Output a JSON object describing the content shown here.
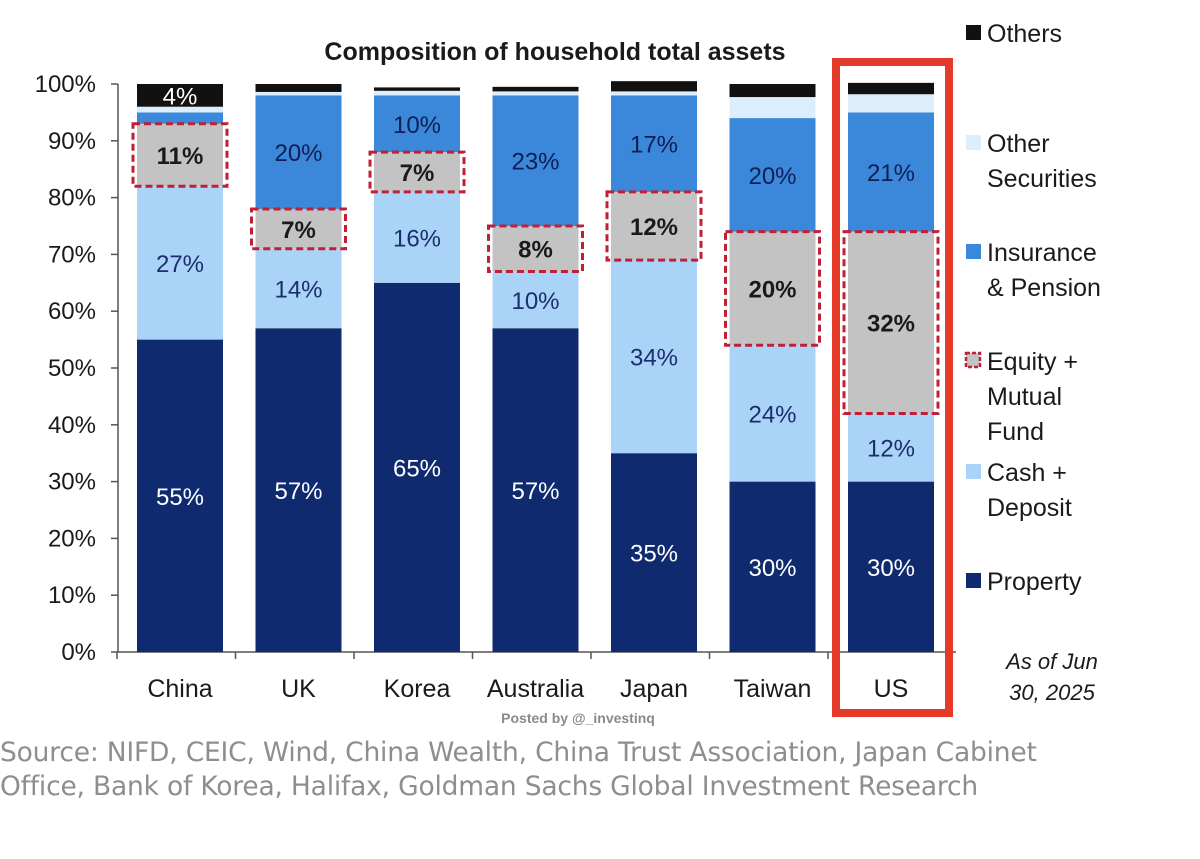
{
  "chart_data": {
    "type": "stacked-bar",
    "title": "Composition  of household total assets",
    "ylim": [
      0,
      100
    ],
    "yticks": [
      "0%",
      "10%",
      "20%",
      "30%",
      "40%",
      "50%",
      "60%",
      "70%",
      "80%",
      "90%",
      "100%"
    ],
    "categories": [
      "China",
      "UK",
      "Korea",
      "Australia",
      "Japan",
      "Taiwan",
      "US"
    ],
    "series": [
      {
        "name": "Property",
        "key": "property",
        "color": "#0f2a6e",
        "labelColor": "#ffffff",
        "values": [
          55,
          57,
          65,
          57,
          35,
          30,
          30
        ],
        "labels": [
          "55%",
          "57%",
          "65%",
          "57%",
          "35%",
          "30%",
          "30%"
        ]
      },
      {
        "name": "Cash + Deposit",
        "key": "cash",
        "color": "#a9d3f7",
        "labelColor": "#1b2f6e",
        "values": [
          27,
          14,
          16,
          10,
          34,
          24,
          12
        ],
        "labels": [
          "27%",
          "14%",
          "16%",
          "10%",
          "34%",
          "24%",
          "12%"
        ]
      },
      {
        "name": "Equity + Mutual Fund",
        "key": "equity",
        "color": "#c3c3c3",
        "labelColor": "#1a1a1a",
        "dashed": true,
        "values": [
          11,
          7,
          7,
          8,
          12,
          20,
          32
        ],
        "labels": [
          "11%",
          "7%",
          "7%",
          "8%",
          "12%",
          "20%",
          "32%"
        ]
      },
      {
        "name": "Insurance & Pension",
        "key": "insurance",
        "color": "#3b87d9",
        "labelColor": "#0f1f55",
        "values": [
          2,
          20,
          10,
          23,
          17,
          20,
          21
        ],
        "labels": [
          "",
          "20%",
          "10%",
          "23%",
          "17%",
          "20%",
          "21%"
        ]
      },
      {
        "name": "Other Securities",
        "key": "othersec",
        "color": "#dceefc",
        "labelColor": "#1a1a1a",
        "values": [
          1,
          0.6,
          0.8,
          0.7,
          0.7,
          3.7,
          3.2
        ],
        "labels": [
          "",
          "",
          "",
          "",
          "",
          "",
          ""
        ]
      },
      {
        "name": "Others",
        "key": "others",
        "color": "#111111",
        "labelColor": "#ffffff",
        "values": [
          4,
          1.4,
          0.6,
          0.8,
          1.8,
          2.3,
          2.0
        ],
        "labels": [
          "4%",
          "",
          "",
          "",
          "",
          "",
          ""
        ]
      }
    ],
    "highlight": "US",
    "legend": [
      {
        "key": "others",
        "lines": [
          "Others"
        ]
      },
      {
        "key": "othersec",
        "lines": [
          "Other",
          "Securities"
        ]
      },
      {
        "key": "insurance",
        "lines": [
          "Insurance",
          "& Pension"
        ]
      },
      {
        "key": "equity",
        "lines": [
          "Equity +",
          "Mutual",
          "Fund"
        ]
      },
      {
        "key": "cash",
        "lines": [
          "Cash +",
          "Deposit"
        ]
      },
      {
        "key": "property",
        "lines": [
          "Property"
        ]
      }
    ],
    "note": [
      "As of Jun",
      "30, 2025"
    ],
    "legend_position": "right"
  },
  "watermark": "Posted by @_investinq",
  "source_lines": [
    "Source: NIFD, CEIC, Wind, China Wealth, China Trust Association, Japan Cabinet",
    "Office, Bank of Korea, Halifax, Goldman Sachs Global Investment Research"
  ],
  "colors": {
    "highlight_box": "#e43a2a",
    "equity_dash": "#c01f35",
    "axis": "#555555"
  }
}
